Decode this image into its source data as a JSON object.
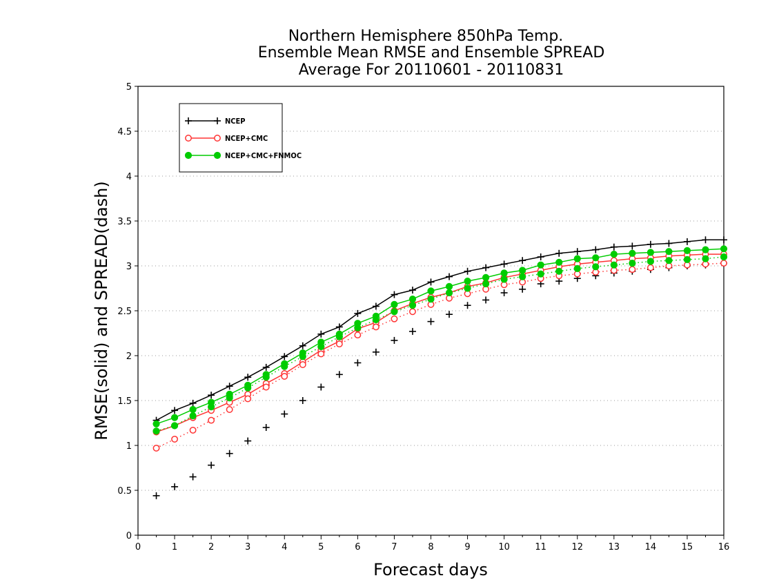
{
  "chart_data": {
    "type": "line",
    "title": [
      "Northern Hemisphere 850hPa Temp.",
      "Ensemble Mean RMSE and Ensemble SPREAD",
      "Average For 20110601 - 20110831"
    ],
    "xlabel": "Forecast days",
    "ylabel": "RMSE(solid) and SPREAD(dash)",
    "xlim": [
      0,
      16
    ],
    "ylim": [
      0,
      5
    ],
    "xticks": [
      0,
      1,
      2,
      3,
      4,
      5,
      6,
      7,
      8,
      9,
      10,
      11,
      12,
      13,
      14,
      15,
      16
    ],
    "yticks": [
      0,
      0.5,
      1,
      1.5,
      2,
      2.5,
      3,
      3.5,
      4,
      4.5,
      5
    ],
    "ytick_labels": [
      "0",
      "0.5",
      "1",
      "1.5",
      "2",
      "2.5",
      "3",
      "3.5",
      "4",
      "4.5",
      "5"
    ],
    "grid": "horizontal dotted",
    "legend_position": "top-left",
    "x": [
      0.5,
      1,
      1.5,
      2,
      2.5,
      3,
      3.5,
      4,
      4.5,
      5,
      5.5,
      6,
      6.5,
      7,
      7.5,
      8,
      8.5,
      9,
      9.5,
      10,
      10.5,
      11,
      11.5,
      12,
      12.5,
      13,
      13.5,
      14,
      14.5,
      15,
      15.5,
      16
    ],
    "series": [
      {
        "name": "NCEP",
        "color": "#000000",
        "marker": "plus",
        "rmse": [
          1.28,
          1.39,
          1.47,
          1.56,
          1.66,
          1.76,
          1.87,
          1.99,
          2.11,
          2.24,
          2.32,
          2.47,
          2.55,
          2.68,
          2.73,
          2.82,
          2.88,
          2.94,
          2.98,
          3.02,
          3.06,
          3.1,
          3.14,
          3.16,
          3.18,
          3.21,
          3.22,
          3.24,
          3.25,
          3.27,
          3.29,
          3.29
        ],
        "spread": [
          0.44,
          0.54,
          0.65,
          0.78,
          0.91,
          1.05,
          1.2,
          1.35,
          1.5,
          1.65,
          1.79,
          1.92,
          2.04,
          2.17,
          2.27,
          2.38,
          2.46,
          2.56,
          2.62,
          2.7,
          2.74,
          2.8,
          2.83,
          2.86,
          2.89,
          2.92,
          2.94,
          2.96,
          2.98,
          3.0,
          3.01,
          3.03
        ]
      },
      {
        "name": "NCEP+CMC",
        "color": "#ff3333",
        "marker": "open-circle",
        "rmse": [
          1.15,
          1.22,
          1.31,
          1.39,
          1.48,
          1.57,
          1.69,
          1.8,
          1.93,
          2.06,
          2.16,
          2.3,
          2.37,
          2.5,
          2.58,
          2.65,
          2.7,
          2.77,
          2.81,
          2.87,
          2.91,
          2.95,
          2.99,
          3.02,
          3.04,
          3.06,
          3.08,
          3.09,
          3.11,
          3.12,
          3.13,
          3.13
        ],
        "spread": [
          0.97,
          1.07,
          1.17,
          1.28,
          1.4,
          1.52,
          1.65,
          1.77,
          1.9,
          2.02,
          2.13,
          2.23,
          2.32,
          2.41,
          2.49,
          2.57,
          2.64,
          2.69,
          2.74,
          2.79,
          2.82,
          2.86,
          2.89,
          2.91,
          2.93,
          2.95,
          2.96,
          2.98,
          3.0,
          3.01,
          3.02,
          3.03
        ]
      },
      {
        "name": "NCEP+CMC+FNMOC",
        "color": "#00cc00",
        "marker": "filled-circle",
        "rmse": [
          1.24,
          1.31,
          1.4,
          1.48,
          1.57,
          1.67,
          1.79,
          1.91,
          2.03,
          2.15,
          2.24,
          2.36,
          2.44,
          2.57,
          2.63,
          2.72,
          2.77,
          2.83,
          2.87,
          2.92,
          2.95,
          3.01,
          3.04,
          3.08,
          3.09,
          3.13,
          3.14,
          3.15,
          3.16,
          3.17,
          3.18,
          3.19
        ],
        "spread": [
          1.16,
          1.22,
          1.33,
          1.43,
          1.53,
          1.64,
          1.76,
          1.88,
          1.99,
          2.1,
          2.21,
          2.31,
          2.4,
          2.49,
          2.56,
          2.63,
          2.7,
          2.75,
          2.8,
          2.85,
          2.88,
          2.91,
          2.94,
          2.97,
          2.99,
          3.01,
          3.03,
          3.05,
          3.06,
          3.07,
          3.08,
          3.1
        ]
      }
    ]
  }
}
